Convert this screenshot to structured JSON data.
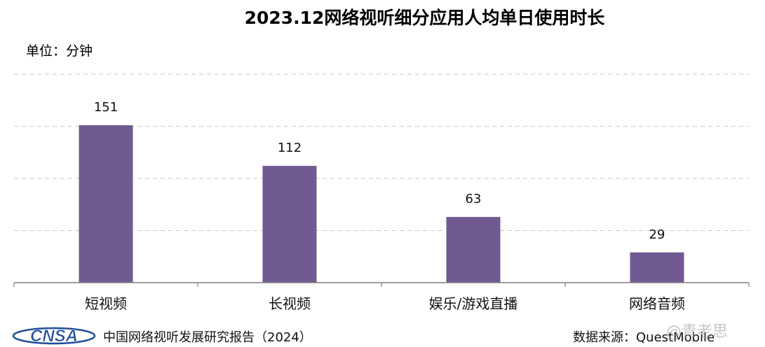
{
  "title": "2023.12网络视听细分应用人均单日使用时长",
  "unit_label": "单位：分钟",
  "chart_data": {
    "type": "bar",
    "categories": [
      "短视频",
      "长视频",
      "娱乐/游戏直播",
      "网络音频"
    ],
    "values": [
      151,
      112,
      63,
      29
    ],
    "data_labels": [
      "151",
      "112",
      "63",
      "29"
    ],
    "ylim": [
      0,
      200
    ],
    "grid": "dashed horizontal",
    "bar_color": "#715a92"
  },
  "footer": {
    "logo_text": "CNSA",
    "report_title": "中国网络视听发展研究报告（2024）",
    "source": "数据来源：QuestMobile"
  },
  "watermark": "@青老思",
  "colors": {
    "bar": "#715a92",
    "grid": "#c8c8c8",
    "axis": "#7f7f7f",
    "logo_blue": "#1f4e9c"
  }
}
